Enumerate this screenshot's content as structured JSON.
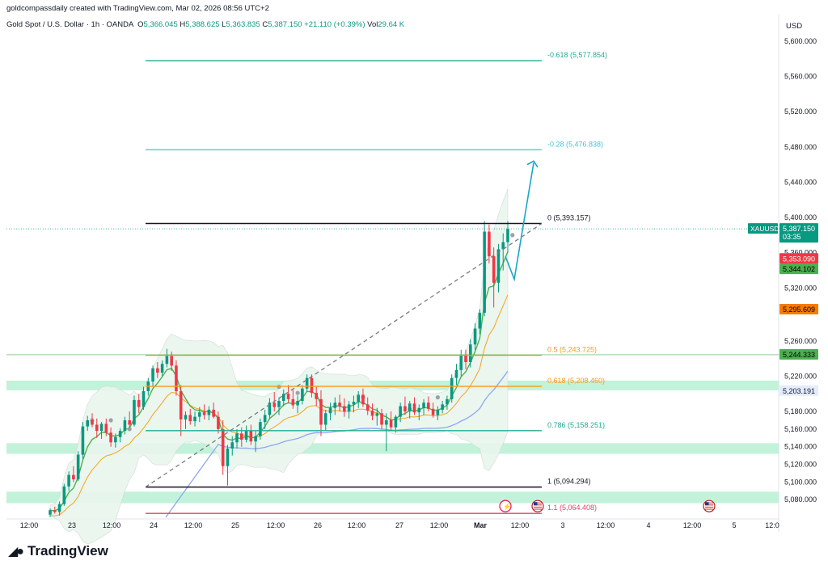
{
  "creator": "goldcompassdaily created with TradingView.com, Mar 02, 2026 08:56 UTC+2",
  "header": {
    "symbol": "Gold Spot / U.S. Dollar · 1h · OANDA",
    "o_label": "O",
    "o": "5,366.045",
    "h_label": "H",
    "h": "5,388.625",
    "l_label": "L",
    "l": "5,363.835",
    "c_label": "C",
    "c": "5,387.150",
    "change": "+21.110 (+0.39%)",
    "vol_label": "Vol",
    "vol": "29.64 K"
  },
  "currency": "USD",
  "brand": "TradingView",
  "colors": {
    "up": "#089981",
    "down": "#f23645",
    "ema_fast": "#4caf50",
    "ema_mid": "#f7a21b",
    "ema_slow": "#8fa6f3",
    "zone": "#b7f0d2",
    "fib_top": "#22ab94",
    "fib_028": "#3ec5d9",
    "fib_0": "#131722",
    "fib_05": "#f79a1e",
    "fib_786": "#22ab94",
    "fib_11": "#e0446a",
    "projection": "#1aa5c7"
  },
  "chart_data": {
    "type": "candlestick",
    "y_axis": {
      "range": [
        5060,
        5610
      ],
      "ticks": [
        "5,080.000",
        "5,100.000",
        "5,120.000",
        "5,140.000",
        "5,160.000",
        "5,180.000",
        "5,220.000",
        "5,260.000",
        "5,320.000",
        "5,360.000",
        "5,400.000",
        "5,440.000",
        "5,480.000",
        "5,520.000",
        "5,560.000",
        "5,600.000"
      ]
    },
    "x_axis": {
      "ticks": [
        "12:00",
        "23",
        "12:00",
        "24",
        "12:00",
        "25",
        "12:00",
        "26",
        "12:00",
        "27",
        "12:00",
        "Mar",
        "12:00",
        "3",
        "12:00",
        "4",
        "12:00",
        "5",
        "12:0"
      ]
    },
    "fib_levels": [
      {
        "label": "-0.618 (5,577.854)",
        "value": 5577.854
      },
      {
        "label": "-0.28 (5,476.838)",
        "value": 5476.838
      },
      {
        "label": "0 (5,393.157)",
        "value": 5393.157
      },
      {
        "label": "0.5 (5,243.725)",
        "value": 5243.725
      },
      {
        "label": "0.618 (5,208.460)",
        "value": 5208.46
      },
      {
        "label": "0.786 (5,158.251)",
        "value": 5158.251
      },
      {
        "label": "1 (5,094.294)",
        "value": 5094.294
      },
      {
        "label": "1.1 (5,064.408)",
        "value": 5064.408
      }
    ],
    "price_badges": [
      {
        "symbol": "XAUUSD",
        "value": "5,387.150",
        "countdown": "03:35",
        "kind": "last"
      },
      {
        "value": "5,353.090",
        "kind": "ema-red"
      },
      {
        "value": "5,344.102",
        "kind": "ema-green"
      },
      {
        "value": "5,295.609",
        "kind": "ema-orange"
      },
      {
        "value": "5,244.333",
        "kind": "ema-green"
      },
      {
        "value": "5,203.191",
        "kind": "ema-blue"
      }
    ],
    "support_zones": [
      [
        5204,
        5215
      ],
      [
        5132,
        5144
      ],
      [
        5076,
        5089
      ]
    ],
    "candles": [
      [
        5063,
        5070,
        5060,
        5068
      ],
      [
        5068,
        5072,
        5064,
        5066
      ],
      [
        5066,
        5078,
        5062,
        5075
      ],
      [
        5075,
        5098,
        5073,
        5095
      ],
      [
        5095,
        5112,
        5090,
        5108
      ],
      [
        5108,
        5118,
        5100,
        5103
      ],
      [
        5103,
        5135,
        5101,
        5131
      ],
      [
        5131,
        5168,
        5126,
        5163
      ],
      [
        5163,
        5175,
        5158,
        5170
      ],
      [
        5170,
        5178,
        5162,
        5165
      ],
      [
        5165,
        5172,
        5150,
        5158
      ],
      [
        5158,
        5168,
        5149,
        5166
      ],
      [
        5166,
        5172,
        5152,
        5156
      ],
      [
        5156,
        5162,
        5140,
        5145
      ],
      [
        5145,
        5155,
        5139,
        5151
      ],
      [
        5151,
        5161,
        5145,
        5158
      ],
      [
        5158,
        5174,
        5154,
        5170
      ],
      [
        5170,
        5180,
        5161,
        5165
      ],
      [
        5165,
        5198,
        5163,
        5193
      ],
      [
        5193,
        5200,
        5178,
        5185
      ],
      [
        5185,
        5208,
        5182,
        5203
      ],
      [
        5203,
        5218,
        5198,
        5214
      ],
      [
        5214,
        5232,
        5209,
        5229
      ],
      [
        5229,
        5236,
        5218,
        5224
      ],
      [
        5224,
        5238,
        5220,
        5234
      ],
      [
        5234,
        5251,
        5230,
        5243
      ],
      [
        5243,
        5248,
        5226,
        5232
      ],
      [
        5232,
        5238,
        5198,
        5203
      ],
      [
        5203,
        5210,
        5152,
        5171
      ],
      [
        5171,
        5180,
        5160,
        5176
      ],
      [
        5176,
        5183,
        5165,
        5169
      ],
      [
        5169,
        5180,
        5163,
        5174
      ],
      [
        5174,
        5185,
        5168,
        5179
      ],
      [
        5179,
        5188,
        5171,
        5176
      ],
      [
        5176,
        5186,
        5170,
        5182
      ],
      [
        5182,
        5190,
        5172,
        5174
      ],
      [
        5174,
        5180,
        5155,
        5160
      ],
      [
        5160,
        5170,
        5108,
        5118
      ],
      [
        5118,
        5142,
        5096,
        5138
      ],
      [
        5138,
        5152,
        5130,
        5145
      ],
      [
        5145,
        5160,
        5138,
        5155
      ],
      [
        5155,
        5162,
        5140,
        5148
      ],
      [
        5148,
        5164,
        5145,
        5158
      ],
      [
        5158,
        5165,
        5142,
        5146
      ],
      [
        5146,
        5158,
        5134,
        5152
      ],
      [
        5152,
        5172,
        5148,
        5168
      ],
      [
        5168,
        5182,
        5160,
        5176
      ],
      [
        5176,
        5195,
        5172,
        5190
      ],
      [
        5190,
        5202,
        5180,
        5185
      ],
      [
        5185,
        5196,
        5176,
        5192
      ],
      [
        5192,
        5205,
        5186,
        5200
      ],
      [
        5200,
        5210,
        5190,
        5194
      ],
      [
        5194,
        5205,
        5183,
        5187
      ],
      [
        5187,
        5198,
        5178,
        5192
      ],
      [
        5192,
        5210,
        5188,
        5206
      ],
      [
        5206,
        5222,
        5202,
        5218
      ],
      [
        5218,
        5222,
        5196,
        5201
      ],
      [
        5201,
        5208,
        5186,
        5194
      ],
      [
        5194,
        5204,
        5152,
        5165
      ],
      [
        5165,
        5182,
        5158,
        5178
      ],
      [
        5178,
        5190,
        5170,
        5184
      ],
      [
        5184,
        5196,
        5176,
        5190
      ],
      [
        5190,
        5199,
        5180,
        5186
      ],
      [
        5186,
        5195,
        5174,
        5180
      ],
      [
        5180,
        5192,
        5172,
        5188
      ],
      [
        5188,
        5198,
        5179,
        5191
      ],
      [
        5191,
        5203,
        5184,
        5199
      ],
      [
        5199,
        5206,
        5185,
        5188
      ],
      [
        5188,
        5196,
        5176,
        5181
      ],
      [
        5181,
        5189,
        5170,
        5175
      ],
      [
        5175,
        5184,
        5164,
        5178
      ],
      [
        5178,
        5183,
        5160,
        5165
      ],
      [
        5165,
        5178,
        5135,
        5170
      ],
      [
        5170,
        5180,
        5158,
        5162
      ],
      [
        5162,
        5176,
        5156,
        5174
      ],
      [
        5174,
        5190,
        5168,
        5186
      ],
      [
        5186,
        5197,
        5176,
        5180
      ],
      [
        5180,
        5192,
        5172,
        5189
      ],
      [
        5189,
        5196,
        5176,
        5179
      ],
      [
        5179,
        5188,
        5170,
        5184
      ],
      [
        5184,
        5194,
        5176,
        5190
      ],
      [
        5190,
        5197,
        5180,
        5183
      ],
      [
        5183,
        5190,
        5173,
        5176
      ],
      [
        5176,
        5186,
        5170,
        5182
      ],
      [
        5182,
        5192,
        5178,
        5188
      ],
      [
        5188,
        5198,
        5182,
        5194
      ],
      [
        5194,
        5222,
        5190,
        5218
      ],
      [
        5218,
        5234,
        5210,
        5227
      ],
      [
        5227,
        5250,
        5220,
        5244
      ],
      [
        5244,
        5250,
        5228,
        5236
      ],
      [
        5236,
        5262,
        5230,
        5256
      ],
      [
        5256,
        5280,
        5250,
        5274
      ],
      [
        5274,
        5296,
        5268,
        5292
      ],
      [
        5292,
        5396,
        5288,
        5384
      ],
      [
        5384,
        5392,
        5348,
        5356
      ],
      [
        5356,
        5366,
        5298,
        5326
      ],
      [
        5326,
        5370,
        5315,
        5364
      ],
      [
        5364,
        5382,
        5340,
        5372
      ],
      [
        5372,
        5396,
        5360,
        5387
      ]
    ]
  }
}
